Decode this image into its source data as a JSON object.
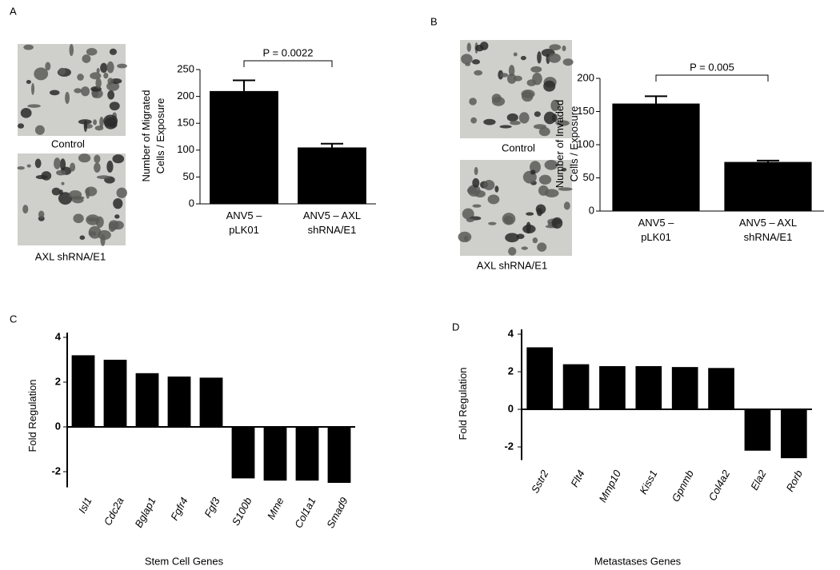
{
  "chart_data": [
    {
      "type": "bar",
      "panel": "A",
      "images": [
        "Control",
        "AXL shRNA/E1"
      ],
      "ylabel": [
        "Number of Migrated",
        "Cells / Exposure"
      ],
      "categories": [
        [
          "ANV5 –",
          "pLK01"
        ],
        [
          "ANV5 – AXL",
          "shRNA/E1"
        ]
      ],
      "values": [
        210,
        105
      ],
      "errors": [
        20,
        7
      ],
      "color": "#000000",
      "ylim": [
        0,
        250
      ],
      "yticks": [
        0,
        50,
        100,
        150,
        200,
        250
      ],
      "annotation": "P = 0.0022"
    },
    {
      "type": "bar",
      "panel": "B",
      "images": [
        "Control",
        "AXL shRNA/E1"
      ],
      "ylabel": [
        "Number of Invaded",
        "Cells / Exposure"
      ],
      "categories": [
        [
          "ANV5 –",
          "pLK01"
        ],
        [
          "ANV5 – AXL",
          "shRNA/E1"
        ]
      ],
      "values": [
        162,
        74
      ],
      "errors": [
        11,
        2
      ],
      "color": "#000000",
      "ylim": [
        0,
        200
      ],
      "yticks": [
        0,
        50,
        100,
        150,
        200
      ],
      "annotation": "P = 0.005"
    },
    {
      "type": "bar",
      "panel": "C",
      "ylabel": [
        "Fold Regulation"
      ],
      "xlabel": "Stem Cell Genes",
      "categories": [
        "Isl1",
        "Cdc2a",
        "Bglap1",
        "Fgfr4",
        "Fgf3",
        "S100b",
        "Mme",
        "Col1a1",
        "Smad9"
      ],
      "values": [
        3.2,
        3.0,
        2.4,
        2.25,
        2.2,
        -2.3,
        -2.4,
        -2.4,
        -2.5
      ],
      "color": "#000000",
      "ylim": [
        -2.7,
        4
      ],
      "yticks": [
        -2,
        0,
        2,
        4
      ]
    },
    {
      "type": "bar",
      "panel": "D",
      "ylabel": [
        "Fold Regulation"
      ],
      "xlabel": "Metastases Genes",
      "categories": [
        "Sstr2",
        "Flt4",
        "Mmp10",
        "Kiss1",
        "Gpnmb",
        "Col4a2",
        "Ela2",
        "Rorb"
      ],
      "values": [
        3.3,
        2.4,
        2.3,
        2.3,
        2.25,
        2.2,
        -2.2,
        -2.6
      ],
      "color": "#000000",
      "ylim": [
        -2.7,
        4
      ],
      "yticks": [
        -2,
        0,
        2,
        4
      ]
    }
  ]
}
